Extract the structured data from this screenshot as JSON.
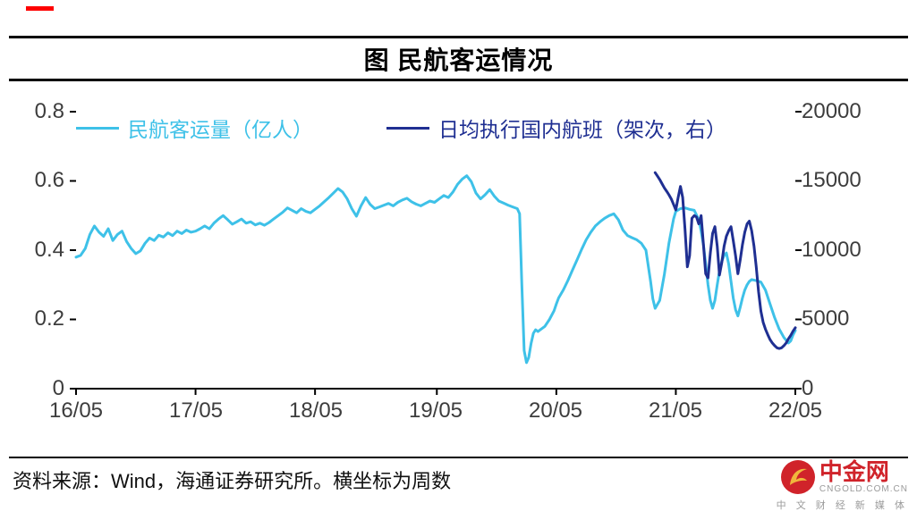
{
  "page": {
    "title": "图 民航客运情况",
    "source_note": "资料来源：Wind，海通证券研究所。横坐标为周数"
  },
  "footer": {
    "logo": {
      "name": "中金网",
      "domain": "CNGOLD.COM.CN",
      "tagline": "中 文 财 经 新 媒 体",
      "brand_red": "#d0232a",
      "brand_gold": "#f0b73c"
    }
  },
  "chart_data": {
    "type": "line",
    "title": "图 民航客运情况",
    "grid": false,
    "legend_position": "top-left-inside",
    "x_axis": {
      "note": "横坐标为周数",
      "tick_labels": [
        "16/05",
        "17/05",
        "18/05",
        "19/05",
        "20/05",
        "21/05",
        "22/05"
      ],
      "tick_weeks": [
        0,
        52,
        104,
        157,
        209,
        261,
        313
      ],
      "range_weeks": [
        0,
        313
      ]
    },
    "left_axis": {
      "tick_labels": [
        "0.8",
        "0.6",
        "0.4",
        "0.2",
        "0"
      ],
      "tick_values": [
        0.8,
        0.6,
        0.4,
        0.2,
        0
      ],
      "min": 0,
      "max": 0.8
    },
    "right_axis": {
      "tick_labels": [
        "20000",
        "15000",
        "10000",
        "5000",
        "0"
      ],
      "tick_values": [
        20000,
        15000,
        10000,
        5000,
        0
      ],
      "min": 0,
      "max": 20000
    },
    "series": [
      {
        "name": "民航客运量（亿人）",
        "axis": "left",
        "color": "#3ec1e8",
        "points": [
          [
            0,
            0.38
          ],
          [
            2,
            0.385
          ],
          [
            4,
            0.405
          ],
          [
            6,
            0.445
          ],
          [
            8,
            0.47
          ],
          [
            10,
            0.452
          ],
          [
            12,
            0.44
          ],
          [
            14,
            0.462
          ],
          [
            16,
            0.428
          ],
          [
            18,
            0.445
          ],
          [
            20,
            0.455
          ],
          [
            22,
            0.425
          ],
          [
            24,
            0.405
          ],
          [
            26,
            0.39
          ],
          [
            28,
            0.398
          ],
          [
            30,
            0.42
          ],
          [
            32,
            0.435
          ],
          [
            34,
            0.428
          ],
          [
            36,
            0.443
          ],
          [
            38,
            0.438
          ],
          [
            40,
            0.45
          ],
          [
            42,
            0.442
          ],
          [
            44,
            0.455
          ],
          [
            46,
            0.448
          ],
          [
            48,
            0.458
          ],
          [
            50,
            0.452
          ],
          [
            52,
            0.455
          ],
          [
            54,
            0.462
          ],
          [
            56,
            0.47
          ],
          [
            58,
            0.462
          ],
          [
            60,
            0.478
          ],
          [
            62,
            0.49
          ],
          [
            64,
            0.5
          ],
          [
            66,
            0.488
          ],
          [
            68,
            0.475
          ],
          [
            70,
            0.482
          ],
          [
            72,
            0.49
          ],
          [
            74,
            0.478
          ],
          [
            76,
            0.482
          ],
          [
            78,
            0.473
          ],
          [
            80,
            0.478
          ],
          [
            82,
            0.472
          ],
          [
            84,
            0.48
          ],
          [
            86,
            0.49
          ],
          [
            88,
            0.5
          ],
          [
            90,
            0.51
          ],
          [
            92,
            0.522
          ],
          [
            94,
            0.515
          ],
          [
            96,
            0.508
          ],
          [
            98,
            0.52
          ],
          [
            100,
            0.512
          ],
          [
            102,
            0.508
          ],
          [
            104,
            0.518
          ],
          [
            106,
            0.528
          ],
          [
            108,
            0.54
          ],
          [
            110,
            0.552
          ],
          [
            112,
            0.565
          ],
          [
            114,
            0.578
          ],
          [
            116,
            0.568
          ],
          [
            118,
            0.548
          ],
          [
            120,
            0.52
          ],
          [
            122,
            0.498
          ],
          [
            124,
            0.528
          ],
          [
            126,
            0.552
          ],
          [
            128,
            0.532
          ],
          [
            130,
            0.52
          ],
          [
            132,
            0.525
          ],
          [
            134,
            0.53
          ],
          [
            136,
            0.535
          ],
          [
            138,
            0.528
          ],
          [
            140,
            0.538
          ],
          [
            142,
            0.545
          ],
          [
            144,
            0.55
          ],
          [
            146,
            0.54
          ],
          [
            148,
            0.533
          ],
          [
            150,
            0.528
          ],
          [
            152,
            0.535
          ],
          [
            154,
            0.542
          ],
          [
            156,
            0.538
          ],
          [
            158,
            0.548
          ],
          [
            160,
            0.558
          ],
          [
            162,
            0.552
          ],
          [
            164,
            0.568
          ],
          [
            166,
            0.59
          ],
          [
            168,
            0.605
          ],
          [
            170,
            0.615
          ],
          [
            172,
            0.598
          ],
          [
            174,
            0.565
          ],
          [
            176,
            0.548
          ],
          [
            178,
            0.56
          ],
          [
            180,
            0.575
          ],
          [
            182,
            0.556
          ],
          [
            184,
            0.542
          ],
          [
            186,
            0.536
          ],
          [
            188,
            0.53
          ],
          [
            190,
            0.525
          ],
          [
            192,
            0.52
          ],
          [
            193,
            0.505
          ],
          [
            194,
            0.3
          ],
          [
            195,
            0.11
          ],
          [
            196,
            0.075
          ],
          [
            197,
            0.09
          ],
          [
            198,
            0.13
          ],
          [
            199,
            0.16
          ],
          [
            200,
            0.17
          ],
          [
            201,
            0.165
          ],
          [
            202,
            0.17
          ],
          [
            204,
            0.18
          ],
          [
            206,
            0.2
          ],
          [
            208,
            0.225
          ],
          [
            209,
            0.245
          ],
          [
            210,
            0.262
          ],
          [
            212,
            0.285
          ],
          [
            214,
            0.312
          ],
          [
            216,
            0.342
          ],
          [
            218,
            0.372
          ],
          [
            220,
            0.402
          ],
          [
            222,
            0.43
          ],
          [
            224,
            0.452
          ],
          [
            226,
            0.47
          ],
          [
            228,
            0.482
          ],
          [
            230,
            0.492
          ],
          [
            232,
            0.5
          ],
          [
            234,
            0.505
          ],
          [
            236,
            0.488
          ],
          [
            238,
            0.458
          ],
          [
            240,
            0.442
          ],
          [
            242,
            0.436
          ],
          [
            244,
            0.43
          ],
          [
            246,
            0.42
          ],
          [
            248,
            0.4
          ],
          [
            250,
            0.31
          ],
          [
            251,
            0.26
          ],
          [
            252,
            0.232
          ],
          [
            254,
            0.255
          ],
          [
            256,
            0.33
          ],
          [
            258,
            0.42
          ],
          [
            260,
            0.49
          ],
          [
            261,
            0.512
          ],
          [
            263,
            0.52
          ],
          [
            265,
            0.522
          ],
          [
            267,
            0.518
          ],
          [
            269,
            0.515
          ],
          [
            271,
            0.488
          ],
          [
            272,
            0.455
          ],
          [
            273,
            0.415
          ],
          [
            274,
            0.36
          ],
          [
            275,
            0.3
          ],
          [
            276,
            0.255
          ],
          [
            277,
            0.232
          ],
          [
            278,
            0.255
          ],
          [
            279,
            0.3
          ],
          [
            280,
            0.34
          ],
          [
            281,
            0.368
          ],
          [
            282,
            0.385
          ],
          [
            283,
            0.392
          ],
          [
            284,
            0.36
          ],
          [
            285,
            0.31
          ],
          [
            286,
            0.262
          ],
          [
            287,
            0.228
          ],
          [
            288,
            0.21
          ],
          [
            289,
            0.235
          ],
          [
            290,
            0.262
          ],
          [
            291,
            0.285
          ],
          [
            292,
            0.3
          ],
          [
            293,
            0.31
          ],
          [
            294,
            0.315
          ],
          [
            296,
            0.312
          ],
          [
            298,
            0.308
          ],
          [
            300,
            0.285
          ],
          [
            302,
            0.245
          ],
          [
            304,
            0.205
          ],
          [
            306,
            0.172
          ],
          [
            308,
            0.148
          ],
          [
            310,
            0.132
          ],
          [
            311,
            0.138
          ],
          [
            312,
            0.155
          ],
          [
            313,
            0.168
          ]
        ]
      },
      {
        "name": "日均执行国内航班（架次，右）",
        "axis": "right",
        "color": "#1f2f92",
        "points": [
          [
            252,
            15600
          ],
          [
            253,
            15350
          ],
          [
            254,
            15100
          ],
          [
            255,
            14800
          ],
          [
            256,
            14500
          ],
          [
            257,
            14250
          ],
          [
            258,
            14000
          ],
          [
            259,
            13700
          ],
          [
            260,
            13300
          ],
          [
            261,
            12900
          ],
          [
            262,
            13800
          ],
          [
            263,
            14600
          ],
          [
            264,
            13800
          ],
          [
            265,
            11500
          ],
          [
            266,
            8800
          ],
          [
            267,
            9600
          ],
          [
            268,
            12300
          ],
          [
            269,
            12500
          ],
          [
            270,
            12400
          ],
          [
            271,
            11900
          ],
          [
            272,
            12500
          ],
          [
            273,
            10400
          ],
          [
            274,
            8300
          ],
          [
            275,
            8000
          ],
          [
            276,
            9800
          ],
          [
            277,
            11200
          ],
          [
            278,
            11700
          ],
          [
            279,
            10300
          ],
          [
            280,
            8200
          ],
          [
            281,
            9100
          ],
          [
            282,
            10300
          ],
          [
            283,
            11000
          ],
          [
            284,
            11400
          ],
          [
            285,
            11700
          ],
          [
            286,
            10700
          ],
          [
            287,
            9600
          ],
          [
            288,
            8300
          ],
          [
            289,
            9300
          ],
          [
            290,
            10400
          ],
          [
            291,
            11300
          ],
          [
            292,
            11900
          ],
          [
            293,
            12100
          ],
          [
            294,
            11400
          ],
          [
            295,
            10300
          ],
          [
            296,
            8800
          ],
          [
            297,
            7000
          ],
          [
            298,
            5600
          ],
          [
            299,
            4800
          ],
          [
            300,
            4300
          ],
          [
            301,
            3900
          ],
          [
            302,
            3550
          ],
          [
            303,
            3300
          ],
          [
            304,
            3100
          ],
          [
            305,
            2950
          ],
          [
            306,
            2900
          ],
          [
            307,
            2950
          ],
          [
            308,
            3100
          ],
          [
            309,
            3300
          ],
          [
            310,
            3600
          ],
          [
            311,
            3850
          ],
          [
            312,
            4150
          ],
          [
            313,
            4400
          ]
        ]
      }
    ]
  }
}
